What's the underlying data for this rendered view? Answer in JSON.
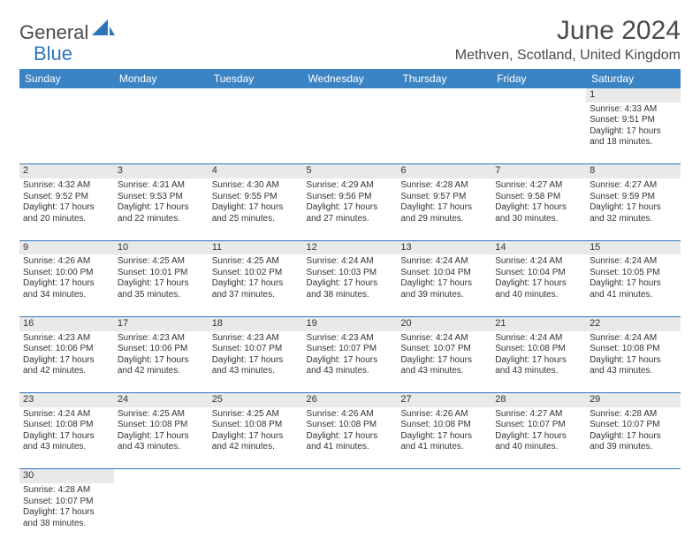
{
  "logo": {
    "part1": "General",
    "part2": "Blue"
  },
  "title": "June 2024",
  "location": "Methven, Scotland, United Kingdom",
  "colors": {
    "header_bg": "#3b84c4",
    "header_text": "#ffffff",
    "daynum_bg": "#e9e9e9",
    "rule": "#2d74bb",
    "text": "#333333",
    "title_text": "#4a4a4a"
  },
  "day_headers": [
    "Sunday",
    "Monday",
    "Tuesday",
    "Wednesday",
    "Thursday",
    "Friday",
    "Saturday"
  ],
  "weeks": [
    {
      "nums": [
        "",
        "",
        "",
        "",
        "",
        "",
        "1"
      ],
      "cells": [
        null,
        null,
        null,
        null,
        null,
        null,
        {
          "sunrise": "4:33 AM",
          "sunset": "9:51 PM",
          "daylight": "17 hours and 18 minutes."
        }
      ]
    },
    {
      "nums": [
        "2",
        "3",
        "4",
        "5",
        "6",
        "7",
        "8"
      ],
      "cells": [
        {
          "sunrise": "4:32 AM",
          "sunset": "9:52 PM",
          "daylight": "17 hours and 20 minutes."
        },
        {
          "sunrise": "4:31 AM",
          "sunset": "9:53 PM",
          "daylight": "17 hours and 22 minutes."
        },
        {
          "sunrise": "4:30 AM",
          "sunset": "9:55 PM",
          "daylight": "17 hours and 25 minutes."
        },
        {
          "sunrise": "4:29 AM",
          "sunset": "9:56 PM",
          "daylight": "17 hours and 27 minutes."
        },
        {
          "sunrise": "4:28 AM",
          "sunset": "9:57 PM",
          "daylight": "17 hours and 29 minutes."
        },
        {
          "sunrise": "4:27 AM",
          "sunset": "9:58 PM",
          "daylight": "17 hours and 30 minutes."
        },
        {
          "sunrise": "4:27 AM",
          "sunset": "9:59 PM",
          "daylight": "17 hours and 32 minutes."
        }
      ]
    },
    {
      "nums": [
        "9",
        "10",
        "11",
        "12",
        "13",
        "14",
        "15"
      ],
      "cells": [
        {
          "sunrise": "4:26 AM",
          "sunset": "10:00 PM",
          "daylight": "17 hours and 34 minutes."
        },
        {
          "sunrise": "4:25 AM",
          "sunset": "10:01 PM",
          "daylight": "17 hours and 35 minutes."
        },
        {
          "sunrise": "4:25 AM",
          "sunset": "10:02 PM",
          "daylight": "17 hours and 37 minutes."
        },
        {
          "sunrise": "4:24 AM",
          "sunset": "10:03 PM",
          "daylight": "17 hours and 38 minutes."
        },
        {
          "sunrise": "4:24 AM",
          "sunset": "10:04 PM",
          "daylight": "17 hours and 39 minutes."
        },
        {
          "sunrise": "4:24 AM",
          "sunset": "10:04 PM",
          "daylight": "17 hours and 40 minutes."
        },
        {
          "sunrise": "4:24 AM",
          "sunset": "10:05 PM",
          "daylight": "17 hours and 41 minutes."
        }
      ]
    },
    {
      "nums": [
        "16",
        "17",
        "18",
        "19",
        "20",
        "21",
        "22"
      ],
      "cells": [
        {
          "sunrise": "4:23 AM",
          "sunset": "10:06 PM",
          "daylight": "17 hours and 42 minutes."
        },
        {
          "sunrise": "4:23 AM",
          "sunset": "10:06 PM",
          "daylight": "17 hours and 42 minutes."
        },
        {
          "sunrise": "4:23 AM",
          "sunset": "10:07 PM",
          "daylight": "17 hours and 43 minutes."
        },
        {
          "sunrise": "4:23 AM",
          "sunset": "10:07 PM",
          "daylight": "17 hours and 43 minutes."
        },
        {
          "sunrise": "4:24 AM",
          "sunset": "10:07 PM",
          "daylight": "17 hours and 43 minutes."
        },
        {
          "sunrise": "4:24 AM",
          "sunset": "10:08 PM",
          "daylight": "17 hours and 43 minutes."
        },
        {
          "sunrise": "4:24 AM",
          "sunset": "10:08 PM",
          "daylight": "17 hours and 43 minutes."
        }
      ]
    },
    {
      "nums": [
        "23",
        "24",
        "25",
        "26",
        "27",
        "28",
        "29"
      ],
      "cells": [
        {
          "sunrise": "4:24 AM",
          "sunset": "10:08 PM",
          "daylight": "17 hours and 43 minutes."
        },
        {
          "sunrise": "4:25 AM",
          "sunset": "10:08 PM",
          "daylight": "17 hours and 43 minutes."
        },
        {
          "sunrise": "4:25 AM",
          "sunset": "10:08 PM",
          "daylight": "17 hours and 42 minutes."
        },
        {
          "sunrise": "4:26 AM",
          "sunset": "10:08 PM",
          "daylight": "17 hours and 41 minutes."
        },
        {
          "sunrise": "4:26 AM",
          "sunset": "10:08 PM",
          "daylight": "17 hours and 41 minutes."
        },
        {
          "sunrise": "4:27 AM",
          "sunset": "10:07 PM",
          "daylight": "17 hours and 40 minutes."
        },
        {
          "sunrise": "4:28 AM",
          "sunset": "10:07 PM",
          "daylight": "17 hours and 39 minutes."
        }
      ]
    },
    {
      "nums": [
        "30",
        "",
        "",
        "",
        "",
        "",
        ""
      ],
      "cells": [
        {
          "sunrise": "4:28 AM",
          "sunset": "10:07 PM",
          "daylight": "17 hours and 38 minutes."
        },
        null,
        null,
        null,
        null,
        null,
        null
      ],
      "last": true
    }
  ],
  "labels": {
    "sunrise": "Sunrise:",
    "sunset": "Sunset:",
    "daylight": "Daylight:"
  }
}
